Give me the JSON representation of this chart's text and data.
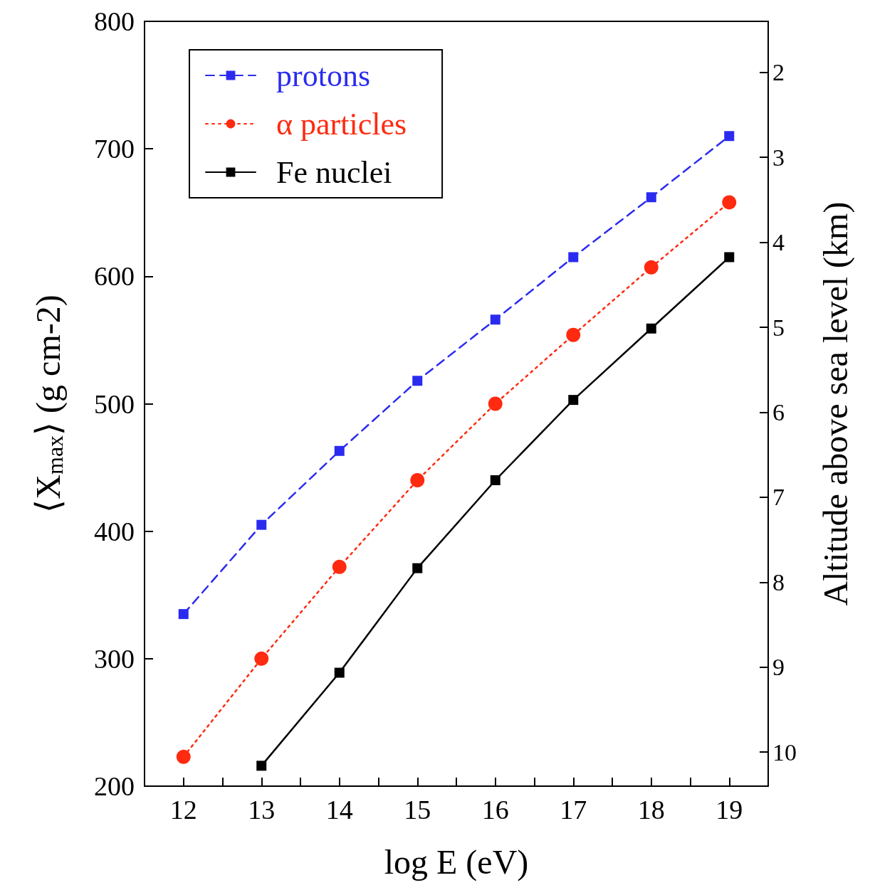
{
  "chart_data": {
    "type": "line",
    "xlabel": "log E (eV)",
    "ylabel": "⟨X$_{max}$⟩ (g cm-2)",
    "y2label": "Altitude above sea level (km)",
    "x": [
      12,
      13,
      14,
      15,
      16,
      17,
      18,
      19
    ],
    "series": [
      {
        "name": "protons",
        "color": "#2b2bf0",
        "marker": "square",
        "line_style": "dashed",
        "values": [
          335,
          405,
          463,
          518,
          566,
          615,
          662,
          710
        ]
      },
      {
        "name": "α particles",
        "color": "#ff2a10",
        "marker": "circle",
        "line_style": "dotted",
        "values": [
          223,
          300,
          372,
          440,
          500,
          554,
          607,
          658
        ]
      },
      {
        "name": "Fe nuclei",
        "color": "#000000",
        "marker": "square",
        "line_style": "solid",
        "values": [
          null,
          216,
          289,
          371,
          440,
          503,
          559,
          615
        ]
      }
    ],
    "xlim": [
      11.5,
      19.5
    ],
    "xticks": [
      12,
      {
        "value": 12.5,
        "label": null
      },
      13,
      {
        "value": 13.5,
        "label": null
      },
      14,
      {
        "value": 14.5,
        "label": null
      },
      15,
      {
        "value": 15.5,
        "label": null
      },
      16,
      {
        "value": 16.5,
        "label": null
      },
      17,
      {
        "value": 17.5,
        "label": null
      },
      18,
      {
        "value": 18.5,
        "label": null
      },
      19
    ],
    "ylim": [
      200,
      800
    ],
    "yticks": [
      200,
      300,
      400,
      500,
      600,
      700,
      800
    ],
    "y2lim": [
      10.4,
      1.4
    ],
    "y2ticks": [
      2,
      3,
      4,
      5,
      6,
      7,
      8,
      9,
      10
    ],
    "grid": false,
    "legend": "top left"
  }
}
